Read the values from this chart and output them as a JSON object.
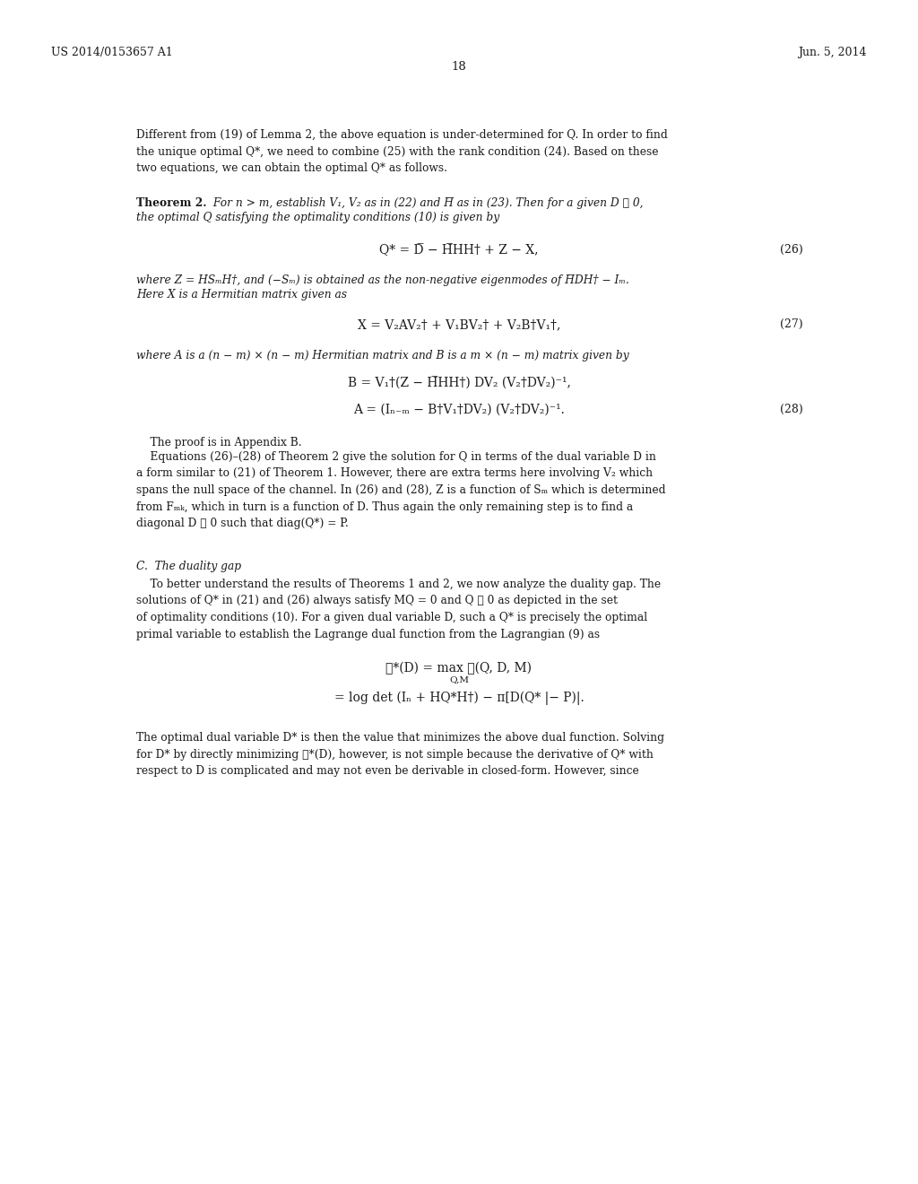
{
  "background_color": "#ffffff",
  "header_left": "US 2014/0153657 A1",
  "header_right": "Jun. 5, 2014",
  "page_number": "18"
}
